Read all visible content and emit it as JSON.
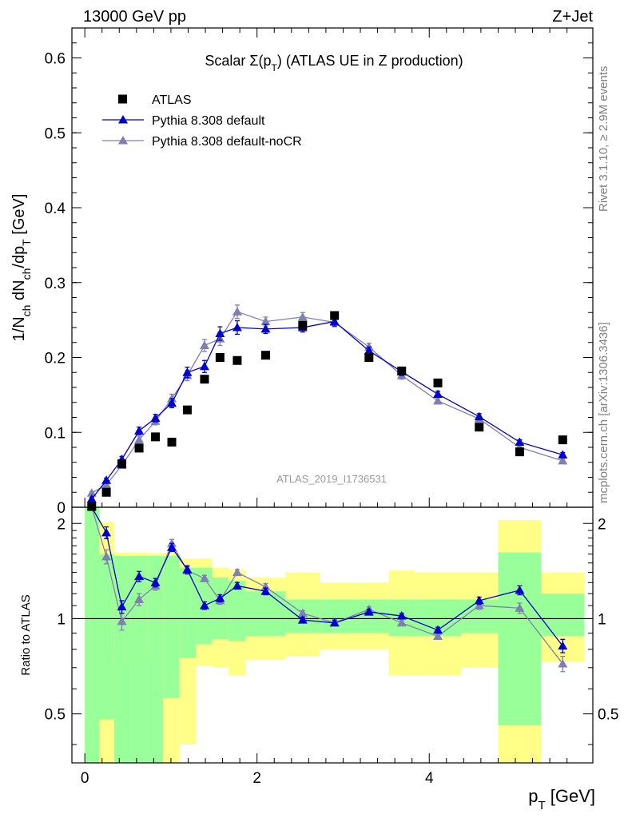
{
  "header": {
    "left": "13000 GeV pp",
    "right": "Z+Jet"
  },
  "side_labels": {
    "rivet": "Rivet 3.1.10, ≥ 2.9M events",
    "mcplots": "mcplots.cern.ch [arXiv:1306.3436]"
  },
  "colors": {
    "data": "#000000",
    "default": "#0000cc",
    "nocr": "#7f7fb2",
    "band_inner": "#99ff99",
    "band_outer": "#ffff88"
  },
  "chart_data": [
    {
      "type": "line",
      "title": "Scalar Σ(p_T) (ATLAS UE in Z production)",
      "watermark": "ATLAS_2019_I1736531",
      "ylabel": "1/N_ch dN_ch/dp_T [GeV]",
      "xlim": [
        -0.15,
        5.9
      ],
      "ylim": [
        0,
        0.64
      ],
      "yticks": [
        0,
        0.1,
        0.2,
        0.3,
        0.4,
        0.5,
        0.6
      ],
      "ytick_labels": [
        "0",
        "0.1",
        "0.2",
        "0.3",
        "0.4",
        "0.5",
        "0.6"
      ],
      "legend_position": "top-left",
      "series": [
        {
          "name": "ATLAS",
          "style": "markers-square",
          "x": [
            0.08,
            0.25,
            0.43,
            0.63,
            0.82,
            1.01,
            1.19,
            1.39,
            1.57,
            1.77,
            2.1,
            2.53,
            2.9,
            3.3,
            3.68,
            4.1,
            4.58,
            5.05,
            5.55
          ],
          "y": [
            0.001,
            0.02,
            0.058,
            0.079,
            0.094,
            0.087,
            0.13,
            0.171,
            0.2,
            0.196,
            0.203,
            0.243,
            0.256,
            0.2,
            0.182,
            0.166,
            0.107,
            0.074,
            0.09
          ]
        },
        {
          "name": "Pythia 8.308 default",
          "style": "line-triangle",
          "x": [
            0.08,
            0.25,
            0.43,
            0.63,
            0.82,
            1.01,
            1.19,
            1.39,
            1.57,
            1.77,
            2.1,
            2.53,
            2.9,
            3.3,
            3.68,
            4.1,
            4.58,
            5.05,
            5.55
          ],
          "y": [
            0.011,
            0.036,
            0.064,
            0.102,
            0.119,
            0.139,
            0.18,
            0.188,
            0.232,
            0.24,
            0.238,
            0.24,
            0.248,
            0.209,
            0.181,
            0.151,
            0.121,
            0.087,
            0.07
          ],
          "err": [
            0.002,
            0.003,
            0.004,
            0.005,
            0.005,
            0.006,
            0.007,
            0.008,
            0.009,
            0.009,
            0.006,
            0.006,
            0.006,
            0.005,
            0.005,
            0.004,
            0.004,
            0.003,
            0.003
          ]
        },
        {
          "name": "Pythia 8.308 default-noCR",
          "style": "line-triangle",
          "x": [
            0.08,
            0.25,
            0.43,
            0.63,
            0.82,
            1.01,
            1.19,
            1.39,
            1.57,
            1.77,
            2.1,
            2.53,
            2.9,
            3.3,
            3.68,
            4.1,
            4.58,
            5.05,
            5.55
          ],
          "y": [
            0.019,
            0.03,
            0.056,
            0.09,
            0.115,
            0.145,
            0.176,
            0.216,
            0.225,
            0.261,
            0.248,
            0.254,
            0.247,
            0.214,
            0.176,
            0.142,
            0.118,
            0.08,
            0.062
          ],
          "err": [
            0.002,
            0.003,
            0.004,
            0.005,
            0.005,
            0.006,
            0.007,
            0.008,
            0.009,
            0.009,
            0.006,
            0.006,
            0.006,
            0.005,
            0.005,
            0.004,
            0.004,
            0.003,
            0.003
          ]
        }
      ]
    },
    {
      "type": "line",
      "xlabel": "p_T [GeV]",
      "ylabel": "Ratio to ATLAS",
      "xlim": [
        -0.15,
        5.9
      ],
      "ylim": [
        0.35,
        2.25
      ],
      "xticks": [
        0,
        2,
        4
      ],
      "xtick_labels": [
        "0",
        "2",
        "4"
      ],
      "yticks": [
        0.5,
        1,
        2
      ],
      "ytick_labels": [
        "0.5",
        "1",
        "2"
      ],
      "reference_line": 1,
      "bands": {
        "edges": [
          0.0,
          0.17,
          0.34,
          0.53,
          0.73,
          0.91,
          1.1,
          1.29,
          1.48,
          1.67,
          1.87,
          2.33,
          2.73,
          3.07,
          3.53,
          3.83,
          4.37,
          4.8,
          5.3,
          5.8
        ],
        "inner_low": [
          0.35,
          0.48,
          0.35,
          0.35,
          0.35,
          0.56,
          0.75,
          0.83,
          0.86,
          0.85,
          0.88,
          0.9,
          0.9,
          0.9,
          0.88,
          0.88,
          0.9,
          0.46,
          0.88
        ],
        "inner_high": [
          2.25,
          1.6,
          1.58,
          1.58,
          1.58,
          1.58,
          1.45,
          1.45,
          1.35,
          1.32,
          1.22,
          1.15,
          1.15,
          1.15,
          1.15,
          1.15,
          1.15,
          1.62,
          1.2
        ],
        "outer_low": [
          0.35,
          0.35,
          0.77,
          0.77,
          0.76,
          0.35,
          0.4,
          0.71,
          0.7,
          0.66,
          0.74,
          0.76,
          0.8,
          0.8,
          0.66,
          0.66,
          0.7,
          0.35,
          0.73
        ],
        "outer_high": [
          2.25,
          2.02,
          1.62,
          1.62,
          1.61,
          1.62,
          1.55,
          1.55,
          1.45,
          1.43,
          1.35,
          1.4,
          1.3,
          1.3,
          1.42,
          1.4,
          1.4,
          2.05,
          1.4
        ]
      },
      "series": [
        {
          "name": "Pythia 8.308 default",
          "x": [
            0.08,
            0.25,
            0.43,
            0.63,
            0.82,
            1.01,
            1.19,
            1.39,
            1.57,
            1.77,
            2.1,
            2.53,
            2.9,
            3.3,
            3.68,
            4.1,
            4.58,
            5.05,
            5.55
          ],
          "y": [
            2.25,
            1.87,
            1.09,
            1.36,
            1.3,
            1.68,
            1.43,
            1.1,
            1.16,
            1.27,
            1.22,
            0.99,
            0.97,
            1.05,
            1.02,
            0.92,
            1.14,
            1.23,
            0.82
          ],
          "err": [
            0.0,
            0.08,
            0.05,
            0.05,
            0.04,
            0.05,
            0.04,
            0.03,
            0.03,
            0.03,
            0.03,
            0.02,
            0.02,
            0.02,
            0.02,
            0.02,
            0.03,
            0.04,
            0.04
          ]
        },
        {
          "name": "Pythia 8.308 default-noCR",
          "x": [
            0.08,
            0.25,
            0.43,
            0.63,
            0.82,
            1.01,
            1.19,
            1.39,
            1.57,
            1.77,
            2.1,
            2.53,
            2.9,
            3.3,
            3.68,
            4.1,
            4.58,
            5.05,
            5.55
          ],
          "y": [
            2.25,
            1.57,
            0.98,
            1.15,
            1.27,
            1.73,
            1.42,
            1.34,
            1.14,
            1.4,
            1.26,
            1.04,
            0.97,
            1.07,
            0.97,
            0.88,
            1.1,
            1.08,
            0.72
          ],
          "err": [
            0.0,
            0.08,
            0.06,
            0.05,
            0.04,
            0.05,
            0.04,
            0.03,
            0.03,
            0.03,
            0.03,
            0.02,
            0.02,
            0.02,
            0.02,
            0.02,
            0.03,
            0.04,
            0.04
          ]
        }
      ]
    }
  ]
}
